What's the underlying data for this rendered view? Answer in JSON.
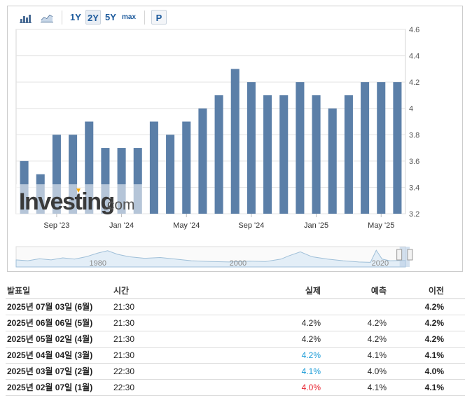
{
  "toolbar": {
    "bar_icon": "bar-chart-icon",
    "line_icon": "line-chart-icon",
    "range_1y": "1Y",
    "range_2y": "2Y",
    "range_5y": "5Y",
    "range_max": "max",
    "p_label": "P"
  },
  "watermark": {
    "brand_main": "Investing",
    "brand_suffix": ".com"
  },
  "colors": {
    "bar": "#5b7fa8",
    "grid": "#e3e3e3",
    "up": "#1a9bd7",
    "down": "#e8222f",
    "nav_line": "#9fbfd8",
    "nav_fill": "#e3eef7"
  },
  "navigator": {
    "labels": [
      "1980",
      "2000",
      "2020"
    ]
  },
  "chart_data": {
    "type": "bar",
    "categories": [
      "2023-07",
      "2023-08",
      "2023-09",
      "2023-10",
      "2023-11",
      "2023-12",
      "2024-01",
      "2024-02",
      "2024-03",
      "2024-04",
      "2024-05",
      "2024-06",
      "2024-07",
      "2024-08",
      "2024-09",
      "2024-10",
      "2024-11",
      "2024-12",
      "2025-01",
      "2025-02",
      "2025-03",
      "2025-04",
      "2025-05",
      "2025-06"
    ],
    "values": [
      3.6,
      3.5,
      3.8,
      3.8,
      3.9,
      3.7,
      3.7,
      3.7,
      3.9,
      3.8,
      3.9,
      4.0,
      4.1,
      4.3,
      4.2,
      4.1,
      4.1,
      4.2,
      4.1,
      4.0,
      4.1,
      4.2,
      4.2,
      4.2
    ],
    "ylim": [
      3.2,
      4.6
    ],
    "yticks": [
      "4.6",
      "4.4",
      "4.2",
      "4",
      "3.8",
      "3.6",
      "3.4",
      "3.2"
    ],
    "xticks": [
      {
        "label": "Sep '23",
        "index": 2
      },
      {
        "label": "Jan '24",
        "index": 6
      },
      {
        "label": "May '24",
        "index": 10
      },
      {
        "label": "Sep '24",
        "index": 14
      },
      {
        "label": "Jan '25",
        "index": 18
      },
      {
        "label": "May '25",
        "index": 22
      }
    ],
    "grid": true,
    "yaxis_side": "right"
  },
  "table": {
    "headers": {
      "date": "발표일",
      "time": "시간",
      "actual": "실제",
      "forecast": "예측",
      "previous": "이전"
    },
    "rows": [
      {
        "date": "2025년 07월 03일 (6월)",
        "time": "21:30",
        "actual": "",
        "forecast": "",
        "previous": "4.2%",
        "trend": ""
      },
      {
        "date": "2025년 06월 06일 (5월)",
        "time": "21:30",
        "actual": "4.2%",
        "forecast": "4.2%",
        "previous": "4.2%",
        "trend": ""
      },
      {
        "date": "2025년 05월 02일 (4월)",
        "time": "21:30",
        "actual": "4.2%",
        "forecast": "4.2%",
        "previous": "4.2%",
        "trend": ""
      },
      {
        "date": "2025년 04월 04일 (3월)",
        "time": "21:30",
        "actual": "4.2%",
        "forecast": "4.1%",
        "previous": "4.1%",
        "trend": "up"
      },
      {
        "date": "2025년 03월 07일 (2월)",
        "time": "22:30",
        "actual": "4.1%",
        "forecast": "4.0%",
        "previous": "4.0%",
        "trend": "up"
      },
      {
        "date": "2025년 02월 07일 (1월)",
        "time": "22:30",
        "actual": "4.0%",
        "forecast": "4.1%",
        "previous": "4.1%",
        "trend": "down"
      }
    ]
  }
}
